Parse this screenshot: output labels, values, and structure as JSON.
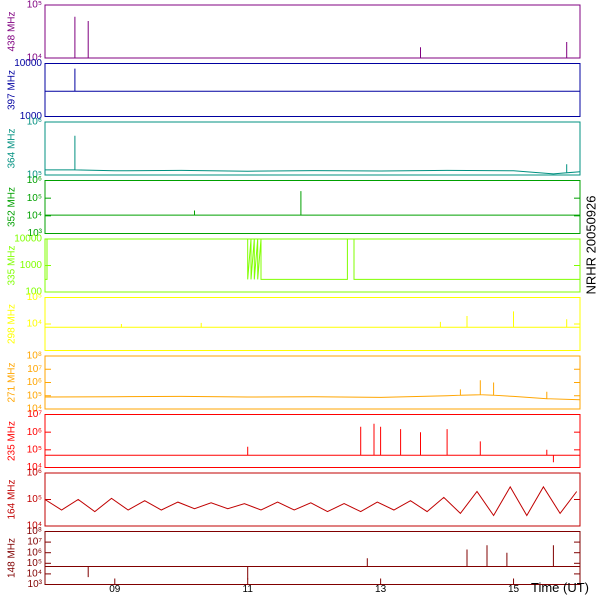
{
  "side_label": "NRHR 20050926",
  "chart_data": [
    {
      "type": "line",
      "ylabel": "438 MHz",
      "color": "#800080",
      "log": true,
      "xlim": [
        7.95,
        16.0
      ],
      "ylim": [
        10000,
        100000
      ],
      "yticks": [
        {
          "value": 10000,
          "label": "10⁴"
        },
        {
          "value": 100000,
          "label": "10⁵"
        }
      ],
      "x": [
        7.95,
        8.4,
        8.4,
        8.4,
        8.6,
        8.6,
        8.6,
        13.6,
        13.6,
        13.6,
        15.8,
        15.8,
        15.8,
        16.0
      ],
      "values": [
        10000,
        10000,
        60000,
        10000,
        10000,
        50000,
        10000,
        10000,
        16000,
        10000,
        10000,
        20000,
        10000,
        10000
      ]
    },
    {
      "type": "line",
      "ylabel": "397 MHz",
      "color": "#0000a0",
      "log": true,
      "xlim": [
        7.95,
        16.0
      ],
      "ylim": [
        1000,
        10000
      ],
      "yticks": [
        1000,
        10000
      ],
      "x": [
        7.95,
        8.4,
        8.4,
        8.4,
        16.0
      ],
      "values": [
        3000,
        3000,
        8000,
        3000,
        3000
      ]
    },
    {
      "type": "line",
      "ylabel": "364 MHz",
      "color": "#009080",
      "log": true,
      "xlim": [
        7.95,
        16.0
      ],
      "ylim": [
        100000,
        1000000
      ],
      "yticks": [
        {
          "value": 100000,
          "label": "10⁵"
        },
        {
          "value": 1000000,
          "label": "10⁶"
        }
      ],
      "x": [
        7.95,
        8.4,
        8.4,
        8.4,
        9.0,
        10.0,
        11.0,
        12.0,
        13.0,
        14.0,
        15.0,
        15.6,
        15.8,
        15.8,
        15.8,
        16.0
      ],
      "values": [
        125000,
        125000,
        550000,
        125000,
        120000,
        122000,
        118000,
        121000,
        119000,
        122000,
        120000,
        105000,
        110000,
        160000,
        110000,
        115000
      ]
    },
    {
      "type": "line",
      "ylabel": "352 MHz",
      "color": "#00a000",
      "log": true,
      "xlim": [
        7.95,
        16.0
      ],
      "ylim": [
        1000,
        1000000
      ],
      "yticks": [
        {
          "value": 1000,
          "label": "10³"
        },
        {
          "value": 10000,
          "label": "10⁴"
        },
        {
          "value": 100000,
          "label": "10⁵"
        },
        {
          "value": 1000000,
          "label": "10⁶"
        }
      ],
      "x": [
        7.95,
        10.2,
        10.2,
        10.2,
        11.8,
        11.8,
        11.8,
        16.0
      ],
      "values": [
        11000,
        11000,
        20000,
        11000,
        11000,
        250000,
        11000,
        11000
      ]
    },
    {
      "type": "line",
      "ylabel": "335 MHz",
      "color": "#80ff00",
      "log": true,
      "xlim": [
        7.95,
        16.0
      ],
      "ylim": [
        100,
        10000
      ],
      "yticks": [
        100,
        1000,
        10000
      ],
      "x": [
        7.95,
        7.98,
        7.98,
        11.0,
        11.0,
        11.05,
        11.05,
        11.1,
        11.1,
        11.15,
        11.15,
        11.2,
        11.2,
        12.5,
        12.5,
        12.6,
        12.6,
        16.0
      ],
      "values": [
        300,
        300,
        10000,
        10000,
        300,
        10000,
        300,
        10000,
        300,
        10000,
        300,
        10000,
        300,
        300,
        10000,
        10000,
        300,
        300
      ]
    },
    {
      "type": "line",
      "ylabel": "298 MHz",
      "color": "#ffff00",
      "log": true,
      "xlim": [
        7.95,
        16.0
      ],
      "ylim": [
        1000,
        100000
      ],
      "yticks": [
        {
          "value": 10000,
          "label": "10⁴"
        },
        {
          "value": 100000,
          "label": "10⁵"
        }
      ],
      "x": [
        7.95,
        9.1,
        9.1,
        9.1,
        10.3,
        10.3,
        10.3,
        13.9,
        13.9,
        13.9,
        14.3,
        14.3,
        14.3,
        15.0,
        15.0,
        15.0,
        15.8,
        15.8,
        15.8,
        16.0
      ],
      "values": [
        7600,
        7600,
        10000,
        7600,
        7600,
        11000,
        7600,
        7600,
        12000,
        7600,
        7600,
        20000,
        7600,
        7600,
        30000,
        7600,
        7600,
        15000,
        7600,
        7600
      ]
    },
    {
      "type": "line",
      "ylabel": "271 MHz",
      "color": "#ffa500",
      "log": true,
      "xlim": [
        7.95,
        16.0
      ],
      "ylim": [
        10000,
        100000000
      ],
      "yticks": [
        {
          "value": 10000,
          "label": "10⁴"
        },
        {
          "value": 100000,
          "label": "10⁵"
        },
        {
          "value": 1000000,
          "label": "10⁶"
        },
        {
          "value": 10000000,
          "label": "10⁷"
        },
        {
          "value": 100000000,
          "label": "10⁸"
        }
      ],
      "x": [
        7.95,
        9.0,
        10.0,
        11.0,
        12.0,
        13.0,
        14.0,
        14.2,
        14.2,
        14.2,
        14.5,
        14.5,
        14.5,
        14.7,
        14.7,
        14.7,
        15.0,
        15.5,
        15.5,
        15.5,
        16.0
      ],
      "values": [
        80000,
        85000,
        90000,
        80000,
        85000,
        75000,
        100000,
        110000,
        300000,
        110000,
        120000,
        1500000,
        120000,
        110000,
        1000000,
        110000,
        90000,
        60000,
        200000,
        60000,
        50000
      ]
    },
    {
      "type": "line",
      "ylabel": "235 MHz",
      "color": "#ff0000",
      "log": true,
      "xlim": [
        7.95,
        16.0
      ],
      "ylim": [
        10000,
        10000000
      ],
      "yticks": [
        {
          "value": 10000,
          "label": "10⁴"
        },
        {
          "value": 100000,
          "label": "10⁵"
        },
        {
          "value": 1000000,
          "label": "10⁶"
        },
        {
          "value": 10000000,
          "label": "10⁷"
        }
      ],
      "x": [
        7.95,
        11.0,
        11.0,
        11.0,
        12.7,
        12.7,
        12.7,
        12.9,
        12.9,
        12.9,
        13.0,
        13.0,
        13.0,
        13.3,
        13.3,
        13.3,
        13.6,
        13.6,
        13.6,
        14.0,
        14.0,
        14.0,
        14.5,
        14.5,
        14.5,
        15.5,
        15.5,
        15.5,
        15.6,
        15.6,
        15.6,
        16.0
      ],
      "values": [
        50000,
        50000,
        150000,
        50000,
        50000,
        2000000,
        50000,
        50000,
        3000000,
        50000,
        50000,
        2000000,
        50000,
        50000,
        1500000,
        50000,
        50000,
        1000000,
        50000,
        50000,
        1500000,
        50000,
        50000,
        300000,
        50000,
        50000,
        100000,
        50000,
        50000,
        20000,
        50000,
        50000
      ]
    },
    {
      "type": "line",
      "ylabel": "164 MHz",
      "color": "#c00000",
      "log": true,
      "xlim": [
        7.95,
        16.0
      ],
      "ylim": [
        10000,
        1000000
      ],
      "yticks": [
        {
          "value": 10000,
          "label": "10⁴"
        },
        {
          "value": 100000,
          "label": "10⁵"
        },
        {
          "value": 1000000,
          "label": "10⁶"
        }
      ],
      "x": [
        7.95,
        8.2,
        8.45,
        8.7,
        8.95,
        9.2,
        9.45,
        9.7,
        9.95,
        10.2,
        10.45,
        10.7,
        10.95,
        11.2,
        11.45,
        11.7,
        11.95,
        12.2,
        12.45,
        12.7,
        12.95,
        13.2,
        13.45,
        13.7,
        13.95,
        14.2,
        14.45,
        14.7,
        14.95,
        15.2,
        15.45,
        15.7,
        15.95
      ],
      "values": [
        100000,
        40000,
        100000,
        35000,
        110000,
        40000,
        90000,
        40000,
        80000,
        45000,
        75000,
        45000,
        70000,
        40000,
        80000,
        40000,
        75000,
        35000,
        70000,
        35000,
        80000,
        40000,
        90000,
        35000,
        120000,
        30000,
        200000,
        25000,
        300000,
        25000,
        300000,
        30000,
        200000
      ]
    },
    {
      "type": "line",
      "ylabel": "148 MHz",
      "color": "#800000",
      "log": true,
      "xlim": [
        7.95,
        16.0
      ],
      "ylim": [
        1000,
        100000000
      ],
      "yticks": [
        {
          "value": 1000,
          "label": "10³"
        },
        {
          "value": 10000,
          "label": "10⁴"
        },
        {
          "value": 100000,
          "label": "10⁵"
        },
        {
          "value": 1000000,
          "label": "10⁶"
        },
        {
          "value": 10000000,
          "label": "10⁷"
        },
        {
          "value": 100000000,
          "label": "10⁸"
        }
      ],
      "x": [
        7.95,
        8.6,
        8.6,
        8.6,
        11.0,
        11.0,
        11.0,
        12.8,
        12.8,
        12.8,
        14.3,
        14.3,
        14.3,
        14.6,
        14.6,
        14.6,
        14.9,
        14.9,
        14.9,
        15.6,
        15.6,
        15.6,
        16.0
      ],
      "values": [
        50000,
        50000,
        5000,
        50000,
        50000,
        3000,
        50000,
        50000,
        300000,
        50000,
        50000,
        2000000,
        50000,
        50000,
        5000000,
        50000,
        50000,
        1000000,
        50000,
        50000,
        5000000,
        50000,
        50000
      ],
      "xticks": [
        {
          "value": 9,
          "label": "09"
        },
        {
          "value": 11,
          "label": "11"
        },
        {
          "value": 13,
          "label": "13"
        },
        {
          "value": 15,
          "label": "15"
        }
      ],
      "xlabel": "Time (UT)"
    }
  ]
}
